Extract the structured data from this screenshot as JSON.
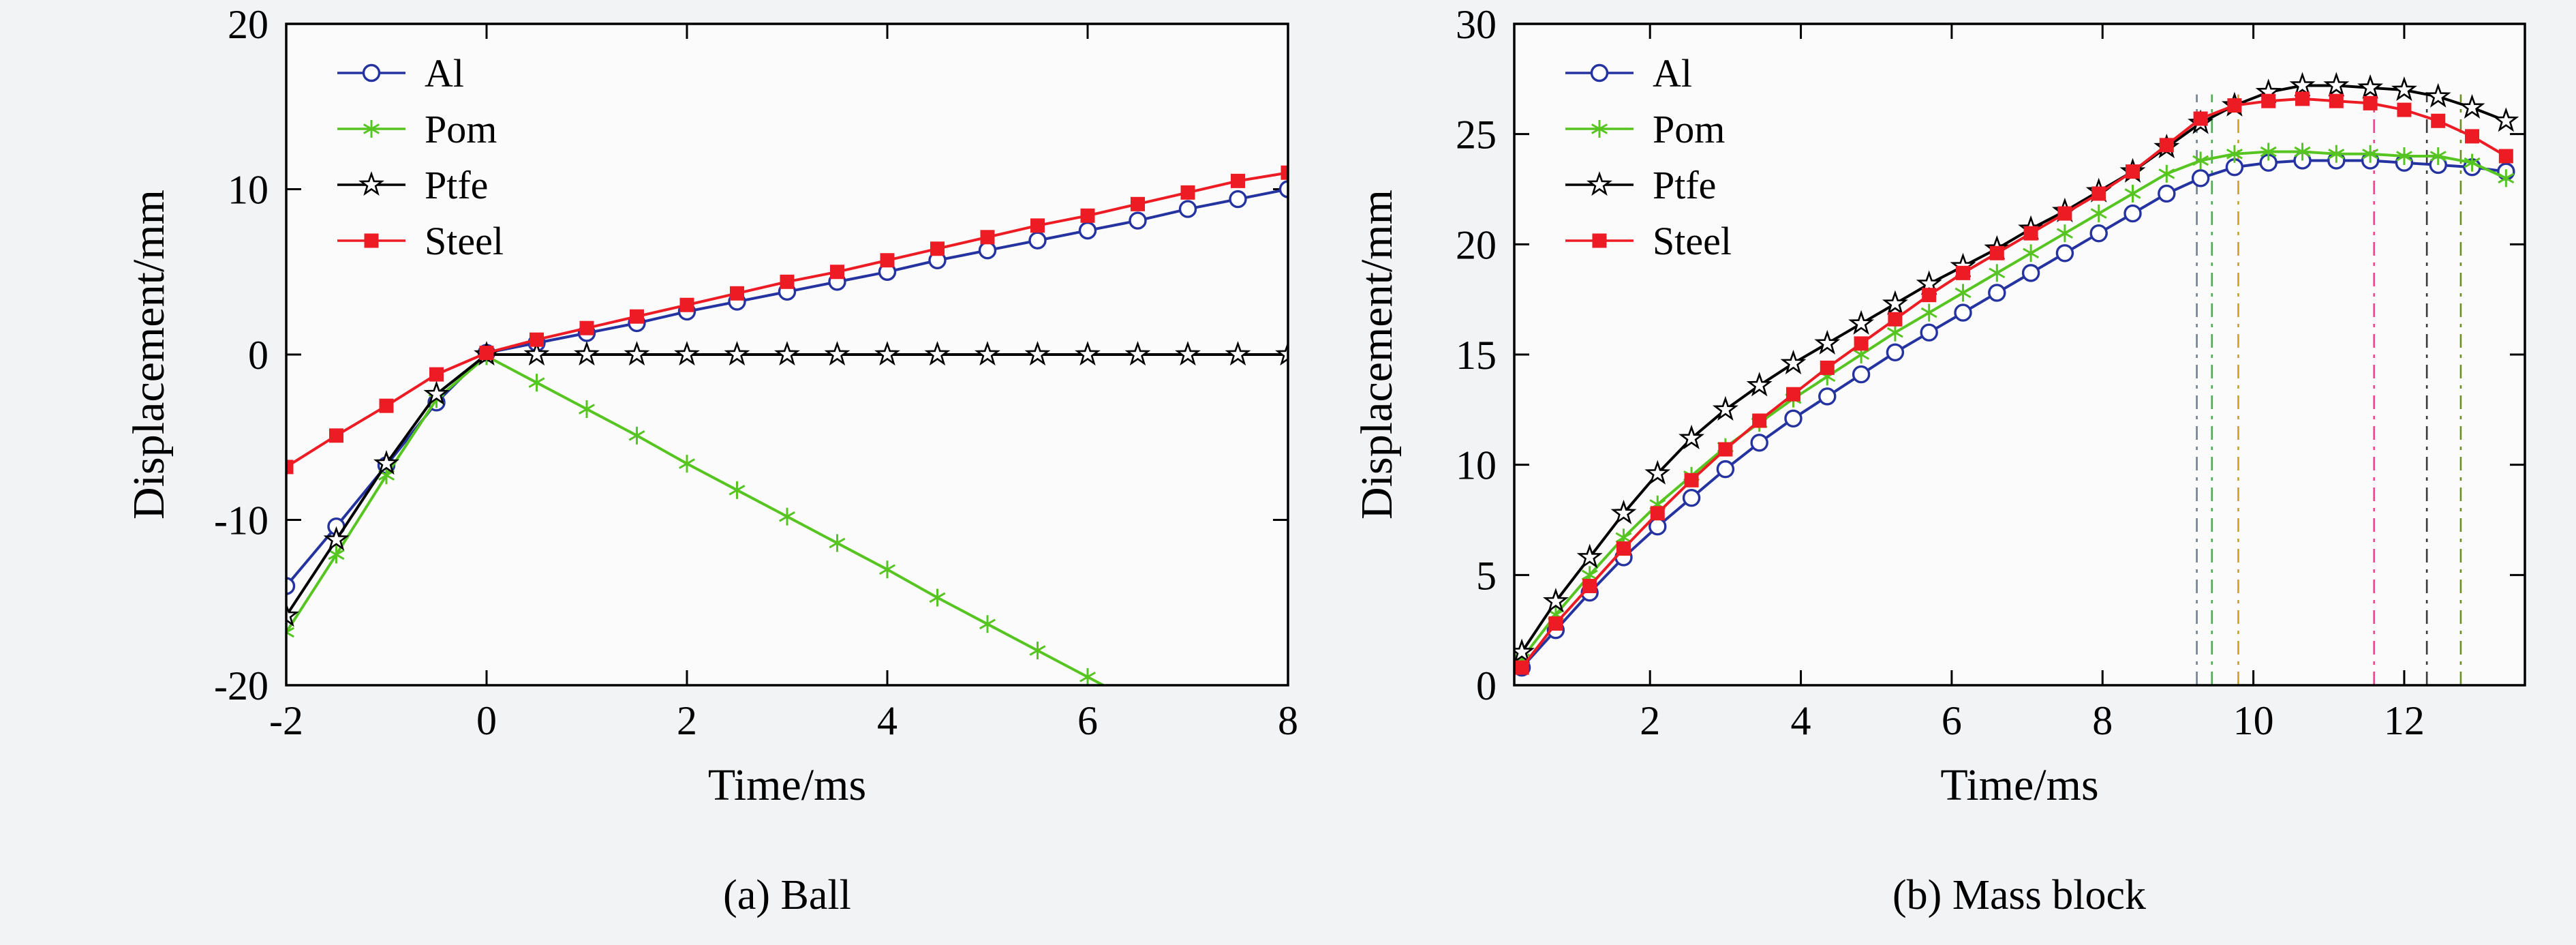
{
  "page": {
    "background": "#f2f3f4"
  },
  "chart_data": [
    {
      "id": "ball",
      "type": "line",
      "caption": "(a) Ball",
      "xlabel": "Time/ms",
      "ylabel": "Displacement/mm",
      "xlim": [
        -2,
        8
      ],
      "ylim": [
        -20,
        20
      ],
      "xticks": [
        -2,
        0,
        2,
        4,
        6,
        8
      ],
      "yticks": [
        -20,
        -10,
        0,
        10,
        20
      ],
      "grid": false,
      "legend_position": "upper-left",
      "legend": [
        "Al",
        "Pom",
        "Ptfe",
        "Steel"
      ],
      "series": [
        {
          "name": "Al",
          "color": "#2433a0",
          "marker": "circle",
          "x": [
            -2,
            -1.5,
            -1,
            -0.5,
            0,
            0.5,
            1,
            1.5,
            2,
            2.5,
            3,
            3.5,
            4,
            4.5,
            5,
            5.5,
            6,
            6.5,
            7,
            7.5,
            8
          ],
          "y": [
            -14.0,
            -10.4,
            -6.7,
            -2.9,
            0.1,
            0.7,
            1.3,
            1.9,
            2.6,
            3.2,
            3.8,
            4.4,
            5.0,
            5.7,
            6.3,
            6.9,
            7.5,
            8.1,
            8.8,
            9.4,
            10.0
          ]
        },
        {
          "name": "Pom",
          "color": "#57c521",
          "marker": "asterisk",
          "x": [
            -2,
            -1.5,
            -1,
            -0.5,
            0,
            0.5,
            1,
            1.5,
            2,
            2.5,
            3,
            3.5,
            4,
            4.5,
            5,
            5.5,
            6,
            6.5
          ],
          "y": [
            -16.8,
            -12.1,
            -7.3,
            -2.7,
            -0.1,
            -1.7,
            -3.3,
            -4.9,
            -6.6,
            -8.2,
            -9.8,
            -11.4,
            -13.0,
            -14.7,
            -16.3,
            -17.9,
            -19.5,
            -21.1
          ]
        },
        {
          "name": "Ptfe",
          "color": "#000000",
          "marker": "star",
          "x": [
            -2,
            -1.5,
            -1,
            -0.5,
            0,
            0.5,
            1,
            1.5,
            2,
            2.5,
            3,
            3.5,
            4,
            4.5,
            5,
            5.5,
            6,
            6.5,
            7,
            7.5,
            8
          ],
          "y": [
            -15.8,
            -11.2,
            -6.6,
            -2.4,
            0,
            0,
            0,
            0,
            0,
            0,
            0,
            0,
            0,
            0,
            0,
            0,
            0,
            0,
            0,
            0,
            0
          ]
        },
        {
          "name": "Steel",
          "color": "#ed1c24",
          "marker": "square",
          "x": [
            -2,
            -1.5,
            -1,
            -0.5,
            0,
            0.5,
            1,
            1.5,
            2,
            2.5,
            3,
            3.5,
            4,
            4.5,
            5,
            5.5,
            6,
            6.5,
            7,
            7.5,
            8
          ],
          "y": [
            -6.8,
            -4.9,
            -3.1,
            -1.2,
            0.1,
            0.9,
            1.6,
            2.3,
            3.0,
            3.7,
            4.4,
            5.0,
            5.7,
            6.4,
            7.1,
            7.8,
            8.4,
            9.1,
            9.8,
            10.5,
            11.0
          ]
        }
      ],
      "vlines": []
    },
    {
      "id": "mass-block",
      "type": "line",
      "caption": "(b) Mass block",
      "xlabel": "Time/ms",
      "ylabel": "Displacement/mm",
      "xlim": [
        0.2,
        13.6
      ],
      "ylim": [
        0,
        30
      ],
      "xticks": [
        2,
        4,
        6,
        8,
        10,
        12
      ],
      "yticks": [
        0,
        5,
        10,
        15,
        20,
        25,
        30
      ],
      "grid": false,
      "legend_position": "upper-left",
      "legend": [
        "Al",
        "Pom",
        "Ptfe",
        "Steel"
      ],
      "series": [
        {
          "name": "Al",
          "color": "#2433a0",
          "marker": "circle",
          "x": [
            0.3,
            0.75,
            1.2,
            1.65,
            2.1,
            2.55,
            3.0,
            3.45,
            3.9,
            4.35,
            4.8,
            5.25,
            5.7,
            6.15,
            6.6,
            7.05,
            7.5,
            7.95,
            8.4,
            8.85,
            9.3,
            9.75,
            10.2,
            10.65,
            11.1,
            11.55,
            12.0,
            12.45,
            12.9,
            13.35
          ],
          "y": [
            0.8,
            2.5,
            4.2,
            5.8,
            7.2,
            8.5,
            9.8,
            11.0,
            12.1,
            13.1,
            14.1,
            15.1,
            16.0,
            16.9,
            17.8,
            18.7,
            19.6,
            20.5,
            21.4,
            22.3,
            23.0,
            23.5,
            23.7,
            23.8,
            23.8,
            23.8,
            23.7,
            23.6,
            23.5,
            23.3
          ]
        },
        {
          "name": "Pom",
          "color": "#57c521",
          "marker": "asterisk",
          "x": [
            0.3,
            0.75,
            1.2,
            1.65,
            2.1,
            2.55,
            3.0,
            3.45,
            3.9,
            4.35,
            4.8,
            5.25,
            5.7,
            6.15,
            6.6,
            7.05,
            7.5,
            7.95,
            8.4,
            8.85,
            9.3,
            9.75,
            10.2,
            10.65,
            11.1,
            11.55,
            12.0,
            12.45,
            12.9,
            13.35
          ],
          "y": [
            1.2,
            3.2,
            5.0,
            6.7,
            8.2,
            9.5,
            10.8,
            11.9,
            13.0,
            14.0,
            15.0,
            16.0,
            16.9,
            17.8,
            18.7,
            19.6,
            20.5,
            21.4,
            22.3,
            23.2,
            23.8,
            24.1,
            24.2,
            24.2,
            24.1,
            24.1,
            24.0,
            24.0,
            23.7,
            23.0
          ]
        },
        {
          "name": "Ptfe",
          "color": "#000000",
          "marker": "star",
          "x": [
            0.3,
            0.75,
            1.2,
            1.65,
            2.1,
            2.55,
            3.0,
            3.45,
            3.9,
            4.35,
            4.8,
            5.25,
            5.7,
            6.15,
            6.6,
            7.05,
            7.5,
            7.95,
            8.4,
            8.85,
            9.3,
            9.75,
            10.2,
            10.65,
            11.1,
            11.55,
            12.0,
            12.45,
            12.9,
            13.35
          ],
          "y": [
            1.5,
            3.8,
            5.8,
            7.8,
            9.6,
            11.2,
            12.5,
            13.6,
            14.6,
            15.5,
            16.4,
            17.3,
            18.2,
            19.0,
            19.8,
            20.7,
            21.5,
            22.4,
            23.3,
            24.4,
            25.5,
            26.3,
            26.9,
            27.2,
            27.2,
            27.1,
            27.0,
            26.7,
            26.2,
            25.6
          ]
        },
        {
          "name": "Steel",
          "color": "#ed1c24",
          "marker": "square",
          "x": [
            0.3,
            0.75,
            1.2,
            1.65,
            2.1,
            2.55,
            3.0,
            3.45,
            3.9,
            4.35,
            4.8,
            5.25,
            5.7,
            6.15,
            6.6,
            7.05,
            7.5,
            7.95,
            8.4,
            8.85,
            9.3,
            9.75,
            10.2,
            10.65,
            11.1,
            11.55,
            12.0,
            12.45,
            12.9,
            13.35
          ],
          "y": [
            0.8,
            2.8,
            4.5,
            6.2,
            7.8,
            9.3,
            10.7,
            12.0,
            13.2,
            14.4,
            15.5,
            16.6,
            17.7,
            18.7,
            19.6,
            20.5,
            21.4,
            22.3,
            23.3,
            24.5,
            25.7,
            26.3,
            26.5,
            26.6,
            26.5,
            26.4,
            26.1,
            25.6,
            24.9,
            24.0
          ]
        }
      ],
      "vlines": [
        {
          "x": 9.25,
          "color": "#708090",
          "y2": 26.8
        },
        {
          "x": 9.45,
          "color": "#4caf50",
          "y2": 26.8
        },
        {
          "x": 9.8,
          "color": "#c8a028",
          "y2": 26.8
        },
        {
          "x": 11.6,
          "color": "#e8488f",
          "y2": 26.8
        },
        {
          "x": 12.3,
          "color": "#3a3a3a",
          "y2": 26.9
        },
        {
          "x": 12.75,
          "color": "#6b8e23",
          "y2": 26.8
        }
      ]
    }
  ]
}
